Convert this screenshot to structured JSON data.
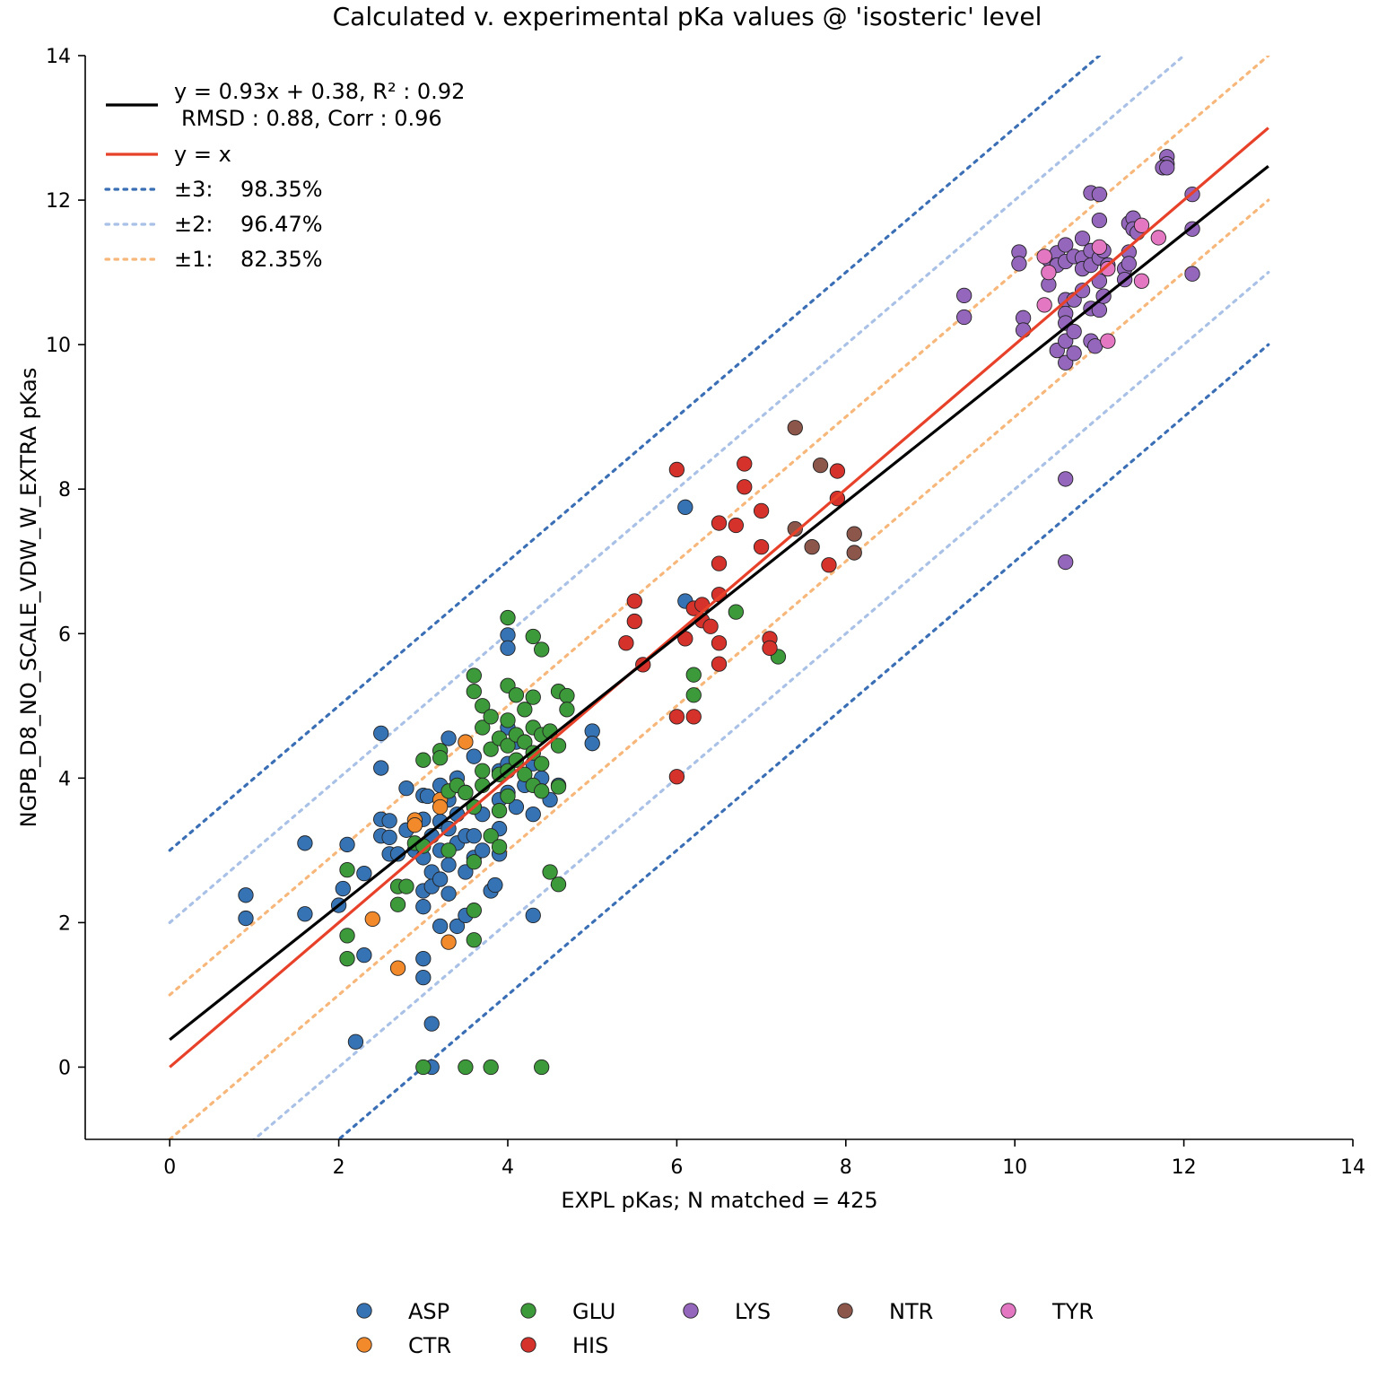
{
  "chart_data": {
    "type": "scatter",
    "title": "Calculated v. experimental pKa values @ 'isosteric' level",
    "xlabel": "EXPL pKas; N matched = 425",
    "ylabel": "NGPB_D8_NO_SCALE_VDW_W_EXTRA pKas",
    "xlim": [
      -1,
      14
    ],
    "ylim": [
      -1,
      14
    ],
    "xticks": [
      0,
      2,
      4,
      6,
      8,
      10,
      12,
      14
    ],
    "yticks": [
      0,
      2,
      4,
      6,
      8,
      10,
      12,
      14
    ],
    "grid": false,
    "lines": [
      {
        "key": "fit",
        "label_line1": "y = 0.93x + 0.38, R² : 0.92",
        "label_line2": "RMSD : 0.88, Corr : 0.96",
        "slope": 0.93,
        "intercept": 0.38,
        "x": [
          0,
          13
        ],
        "color": "#000000",
        "style": "solid"
      },
      {
        "key": "identity",
        "label": "y = x",
        "slope": 1,
        "intercept": 0,
        "x": [
          0,
          13
        ],
        "color": "#e8412a",
        "style": "solid"
      },
      {
        "key": "pm3",
        "label_prefix": "±3:",
        "label_value": "98.35%",
        "offset": 3,
        "color": "#3a6eb5",
        "style": "dotted"
      },
      {
        "key": "pm2",
        "label_prefix": "±2:",
        "label_value": "96.47%",
        "offset": 2,
        "color": "#a9c1e6",
        "style": "dotted"
      },
      {
        "key": "pm1",
        "label_prefix": "±1:",
        "label_value": "82.35%",
        "offset": 1,
        "color": "#f7b77a",
        "style": "dotted"
      }
    ],
    "series": [
      {
        "name": "ASP",
        "color": "#3673b5",
        "points": [
          [
            0.9,
            2.38
          ],
          [
            0.9,
            2.06
          ],
          [
            1.6,
            3.1
          ],
          [
            1.6,
            2.12
          ],
          [
            2.0,
            2.24
          ],
          [
            2.05,
            2.47
          ],
          [
            2.1,
            3.08
          ],
          [
            2.2,
            0.35
          ],
          [
            2.3,
            1.55
          ],
          [
            2.3,
            2.68
          ],
          [
            2.5,
            4.62
          ],
          [
            2.5,
            4.14
          ],
          [
            2.5,
            3.43
          ],
          [
            2.5,
            3.2
          ],
          [
            2.6,
            3.41
          ],
          [
            2.6,
            3.18
          ],
          [
            2.6,
            2.95
          ],
          [
            2.7,
            2.95
          ],
          [
            2.8,
            3.86
          ],
          [
            2.8,
            3.28
          ],
          [
            2.9,
            3.0
          ],
          [
            3.0,
            3.76
          ],
          [
            3.0,
            3.43
          ],
          [
            3.0,
            2.9
          ],
          [
            3.0,
            2.44
          ],
          [
            3.0,
            2.22
          ],
          [
            3.0,
            1.5
          ],
          [
            3.0,
            1.24
          ],
          [
            3.05,
            3.75
          ],
          [
            3.1,
            3.2
          ],
          [
            3.1,
            2.7
          ],
          [
            3.1,
            2.5
          ],
          [
            3.1,
            0.6
          ],
          [
            3.1,
            0.0
          ],
          [
            3.2,
            3.9
          ],
          [
            3.2,
            3.4
          ],
          [
            3.2,
            3.0
          ],
          [
            3.2,
            2.6
          ],
          [
            3.2,
            1.95
          ],
          [
            3.3,
            4.55
          ],
          [
            3.3,
            3.7
          ],
          [
            3.3,
            3.3
          ],
          [
            3.3,
            2.8
          ],
          [
            3.3,
            2.4
          ],
          [
            3.4,
            4.0
          ],
          [
            3.4,
            3.5
          ],
          [
            3.4,
            3.1
          ],
          [
            3.4,
            1.95
          ],
          [
            3.5,
            3.8
          ],
          [
            3.5,
            3.2
          ],
          [
            3.5,
            2.7
          ],
          [
            3.5,
            2.1
          ],
          [
            3.6,
            4.3
          ],
          [
            3.6,
            3.6
          ],
          [
            3.6,
            3.2
          ],
          [
            3.6,
            2.9
          ],
          [
            3.7,
            3.5
          ],
          [
            3.7,
            3.0
          ],
          [
            3.8,
            2.44
          ],
          [
            3.85,
            2.52
          ],
          [
            3.9,
            4.1
          ],
          [
            3.9,
            3.7
          ],
          [
            3.9,
            3.3
          ],
          [
            3.9,
            2.95
          ],
          [
            4.0,
            5.98
          ],
          [
            4.0,
            5.8
          ],
          [
            4.0,
            4.7
          ],
          [
            4.0,
            4.2
          ],
          [
            4.0,
            3.8
          ],
          [
            4.1,
            4.5
          ],
          [
            4.1,
            3.6
          ],
          [
            4.2,
            3.9
          ],
          [
            4.3,
            4.2
          ],
          [
            4.3,
            3.5
          ],
          [
            4.3,
            2.1
          ],
          [
            4.4,
            4.0
          ],
          [
            4.5,
            3.7
          ],
          [
            4.6,
            3.9
          ],
          [
            5.0,
            4.65
          ],
          [
            5.0,
            4.48
          ],
          [
            6.1,
            7.75
          ],
          [
            6.1,
            6.45
          ]
        ]
      },
      {
        "name": "CTR",
        "color": "#f28a2c",
        "points": [
          [
            2.4,
            2.05
          ],
          [
            2.7,
            1.37
          ],
          [
            2.9,
            3.42
          ],
          [
            2.9,
            3.35
          ],
          [
            3.2,
            3.7
          ],
          [
            3.2,
            3.6
          ],
          [
            3.3,
            1.73
          ],
          [
            3.5,
            4.5
          ]
        ]
      },
      {
        "name": "GLU",
        "color": "#3d9a3a",
        "points": [
          [
            2.1,
            2.73
          ],
          [
            2.1,
            1.82
          ],
          [
            2.1,
            1.5
          ],
          [
            2.7,
            2.5
          ],
          [
            2.7,
            2.25
          ],
          [
            2.8,
            2.5
          ],
          [
            2.9,
            3.1
          ],
          [
            3.0,
            4.25
          ],
          [
            3.0,
            3.06
          ],
          [
            3.0,
            0.0
          ],
          [
            3.2,
            4.38
          ],
          [
            3.2,
            4.28
          ],
          [
            3.3,
            3.82
          ],
          [
            3.3,
            3.0
          ],
          [
            3.4,
            3.9
          ],
          [
            3.5,
            3.8
          ],
          [
            3.5,
            0.0
          ],
          [
            3.6,
            5.42
          ],
          [
            3.6,
            5.2
          ],
          [
            3.6,
            3.6
          ],
          [
            3.6,
            2.84
          ],
          [
            3.6,
            2.17
          ],
          [
            3.6,
            1.76
          ],
          [
            3.7,
            5.0
          ],
          [
            3.7,
            4.7
          ],
          [
            3.7,
            4.1
          ],
          [
            3.7,
            3.9
          ],
          [
            3.8,
            4.85
          ],
          [
            3.8,
            4.4
          ],
          [
            3.8,
            3.2
          ],
          [
            3.8,
            0.0
          ],
          [
            3.9,
            4.55
          ],
          [
            3.9,
            4.05
          ],
          [
            3.9,
            3.55
          ],
          [
            3.9,
            3.05
          ],
          [
            4.0,
            6.22
          ],
          [
            4.0,
            5.28
          ],
          [
            4.0,
            4.8
          ],
          [
            4.0,
            4.45
          ],
          [
            4.0,
            4.1
          ],
          [
            4.0,
            3.75
          ],
          [
            4.1,
            5.15
          ],
          [
            4.1,
            4.6
          ],
          [
            4.1,
            4.25
          ],
          [
            4.2,
            4.95
          ],
          [
            4.2,
            4.5
          ],
          [
            4.2,
            4.05
          ],
          [
            4.3,
            5.96
          ],
          [
            4.3,
            5.12
          ],
          [
            4.3,
            4.7
          ],
          [
            4.3,
            4.35
          ],
          [
            4.3,
            3.9
          ],
          [
            4.4,
            5.78
          ],
          [
            4.4,
            4.6
          ],
          [
            4.4,
            4.2
          ],
          [
            4.4,
            3.82
          ],
          [
            4.5,
            2.7
          ],
          [
            4.5,
            4.65
          ],
          [
            4.6,
            5.2
          ],
          [
            4.6,
            4.45
          ],
          [
            4.6,
            3.88
          ],
          [
            4.6,
            2.53
          ],
          [
            4.7,
            5.14
          ],
          [
            4.7,
            4.95
          ],
          [
            4.4,
            0.0
          ],
          [
            6.2,
            5.43
          ],
          [
            6.2,
            5.15
          ],
          [
            6.7,
            6.3
          ],
          [
            7.2,
            5.68
          ]
        ]
      },
      {
        "name": "HIS",
        "color": "#d6322c",
        "points": [
          [
            5.4,
            5.87
          ],
          [
            5.5,
            6.45
          ],
          [
            5.5,
            6.17
          ],
          [
            5.6,
            5.57
          ],
          [
            6.0,
            8.27
          ],
          [
            6.0,
            4.85
          ],
          [
            6.0,
            4.02
          ],
          [
            6.1,
            5.93
          ],
          [
            6.2,
            4.85
          ],
          [
            6.2,
            6.35
          ],
          [
            6.3,
            6.4
          ],
          [
            6.3,
            6.18
          ],
          [
            6.4,
            6.1
          ],
          [
            6.5,
            7.53
          ],
          [
            6.5,
            6.97
          ],
          [
            6.5,
            6.54
          ],
          [
            6.5,
            5.87
          ],
          [
            6.5,
            5.58
          ],
          [
            6.7,
            7.5
          ],
          [
            6.8,
            8.35
          ],
          [
            6.8,
            8.03
          ],
          [
            7.0,
            7.7
          ],
          [
            7.0,
            7.2
          ],
          [
            7.1,
            5.93
          ],
          [
            7.1,
            5.8
          ],
          [
            7.8,
            6.95
          ],
          [
            7.9,
            8.25
          ],
          [
            7.9,
            7.87
          ]
        ]
      },
      {
        "name": "LYS",
        "color": "#9467bd",
        "points": [
          [
            9.4,
            10.68
          ],
          [
            9.4,
            10.38
          ],
          [
            10.05,
            11.28
          ],
          [
            10.05,
            11.12
          ],
          [
            10.1,
            10.37
          ],
          [
            10.1,
            10.2
          ],
          [
            10.4,
            11.18
          ],
          [
            10.4,
            10.83
          ],
          [
            10.5,
            11.27
          ],
          [
            10.5,
            11.1
          ],
          [
            10.5,
            9.92
          ],
          [
            10.6,
            11.38
          ],
          [
            10.6,
            11.15
          ],
          [
            10.6,
            10.62
          ],
          [
            10.6,
            10.43
          ],
          [
            10.6,
            10.3
          ],
          [
            10.6,
            10.05
          ],
          [
            10.6,
            9.75
          ],
          [
            10.6,
            8.14
          ],
          [
            10.6,
            6.99
          ],
          [
            10.7,
            11.22
          ],
          [
            10.7,
            10.62
          ],
          [
            10.7,
            10.18
          ],
          [
            10.7,
            9.88
          ],
          [
            10.8,
            11.47
          ],
          [
            10.8,
            11.2
          ],
          [
            10.8,
            11.05
          ],
          [
            10.8,
            10.75
          ],
          [
            10.9,
            12.1
          ],
          [
            10.9,
            11.3
          ],
          [
            10.9,
            11.1
          ],
          [
            10.9,
            10.5
          ],
          [
            10.9,
            10.05
          ],
          [
            10.95,
            9.98
          ],
          [
            11.0,
            12.08
          ],
          [
            11.0,
            11.72
          ],
          [
            11.0,
            11.2
          ],
          [
            11.0,
            10.88
          ],
          [
            11.0,
            10.48
          ],
          [
            11.05,
            11.3
          ],
          [
            11.05,
            10.67
          ],
          [
            11.1,
            11.1
          ],
          [
            11.3,
            11.05
          ],
          [
            11.3,
            10.9
          ],
          [
            11.35,
            11.68
          ],
          [
            11.35,
            11.28
          ],
          [
            11.35,
            11.12
          ],
          [
            11.4,
            11.75
          ],
          [
            11.4,
            11.6
          ],
          [
            11.45,
            11.55
          ],
          [
            11.8,
            12.6
          ],
          [
            11.8,
            12.5
          ],
          [
            11.75,
            12.45
          ],
          [
            11.8,
            12.45
          ],
          [
            12.1,
            12.08
          ],
          [
            12.1,
            11.6
          ],
          [
            12.1,
            10.98
          ]
        ]
      },
      {
        "name": "NTR",
        "color": "#8c564b",
        "points": [
          [
            7.4,
            8.85
          ],
          [
            7.4,
            7.45
          ],
          [
            7.6,
            7.2
          ],
          [
            7.7,
            8.33
          ],
          [
            8.1,
            7.38
          ],
          [
            8.1,
            7.12
          ]
        ]
      },
      {
        "name": "TYR",
        "color": "#e377c2",
        "points": [
          [
            10.35,
            10.55
          ],
          [
            10.35,
            11.22
          ],
          [
            10.4,
            11.0
          ],
          [
            11.0,
            11.35
          ],
          [
            11.1,
            10.05
          ],
          [
            11.1,
            11.05
          ],
          [
            11.5,
            11.65
          ],
          [
            11.5,
            10.88
          ],
          [
            11.7,
            11.48
          ]
        ]
      }
    ],
    "legend_top_left": [
      "fit",
      "identity",
      "pm3",
      "pm2",
      "pm1"
    ],
    "legend_bottom": "below-center, 5 columns"
  }
}
